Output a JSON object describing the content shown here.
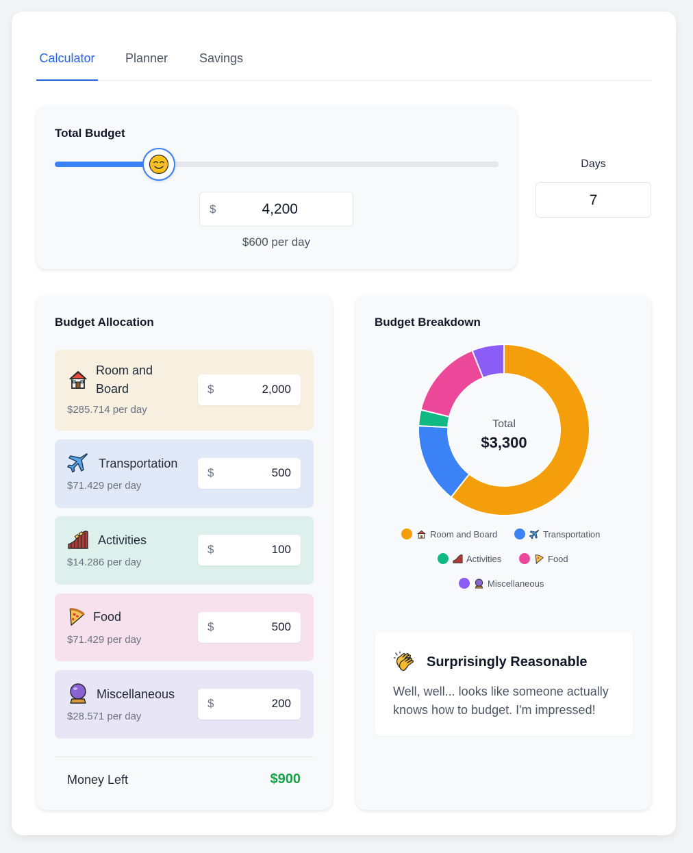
{
  "tabs": [
    {
      "label": "Calculator",
      "active": true
    },
    {
      "label": "Planner",
      "active": false
    },
    {
      "label": "Savings",
      "active": false
    }
  ],
  "budget": {
    "title": "Total Budget",
    "slider_level_percent": 23.5,
    "slider_icon": "smiling-face-icon",
    "currency": "$",
    "amount": "4,200",
    "per_day": "$600 per day"
  },
  "days": {
    "label": "Days",
    "value": "7"
  },
  "allocation": {
    "title": "Budget Allocation",
    "categories": [
      {
        "name": "Room and Board",
        "icon": "house-icon",
        "amount": "2,000",
        "per_day": "$285.714 per day",
        "bg": "#f7efdf"
      },
      {
        "name": "Transportation",
        "icon": "airplane-icon",
        "amount": "500",
        "per_day": "$71.429 per day",
        "bg": "#e1e9f9"
      },
      {
        "name": "Activities",
        "icon": "roller-coaster-icon",
        "amount": "100",
        "per_day": "$14.286 per day",
        "bg": "#ddf0eb"
      },
      {
        "name": "Food",
        "icon": "pizza-icon",
        "amount": "500",
        "per_day": "$71.429 per day",
        "bg": "#f6e1ec"
      },
      {
        "name": "Miscellaneous",
        "icon": "crystal-ball-icon",
        "amount": "200",
        "per_day": "$28.571 per day",
        "bg": "#e8e5f7"
      }
    ],
    "money_left_label": "Money Left",
    "money_left_value": "$900",
    "money_left_color": "#16a34a"
  },
  "breakdown": {
    "title": "Budget Breakdown",
    "total_label": "Total",
    "total_value": "$3,300",
    "legend": [
      {
        "label": "Room and Board",
        "icon": "house-icon",
        "color": "#f59e0b"
      },
      {
        "label": "Transportation",
        "icon": "airplane-icon",
        "color": "#3b82f6"
      },
      {
        "label": "Activities",
        "icon": "roller-coaster-icon",
        "color": "#10b981"
      },
      {
        "label": "Food",
        "icon": "pizza-icon",
        "color": "#ec4899"
      },
      {
        "label": "Miscellaneous",
        "icon": "crystal-ball-icon",
        "color": "#8b5cf6"
      }
    ]
  },
  "chart_data": {
    "type": "pie",
    "categories": [
      "Room and Board",
      "Transportation",
      "Activities",
      "Food",
      "Miscellaneous"
    ],
    "values": [
      2000,
      500,
      100,
      500,
      200
    ],
    "colors": [
      "#f59e0b",
      "#3b82f6",
      "#10b981",
      "#ec4899",
      "#8b5cf6"
    ],
    "donut": true,
    "legend_placement": "bottom"
  },
  "reaction": {
    "icon": "clapping-hands-icon",
    "title": "Surprisingly Reasonable",
    "message_line1": "Well, well... looks like someone actually",
    "message_line2": "knows how to budget. I'm impressed!"
  },
  "colors": {
    "accent": "#3b82f6",
    "tab_active": "#2563eb"
  }
}
